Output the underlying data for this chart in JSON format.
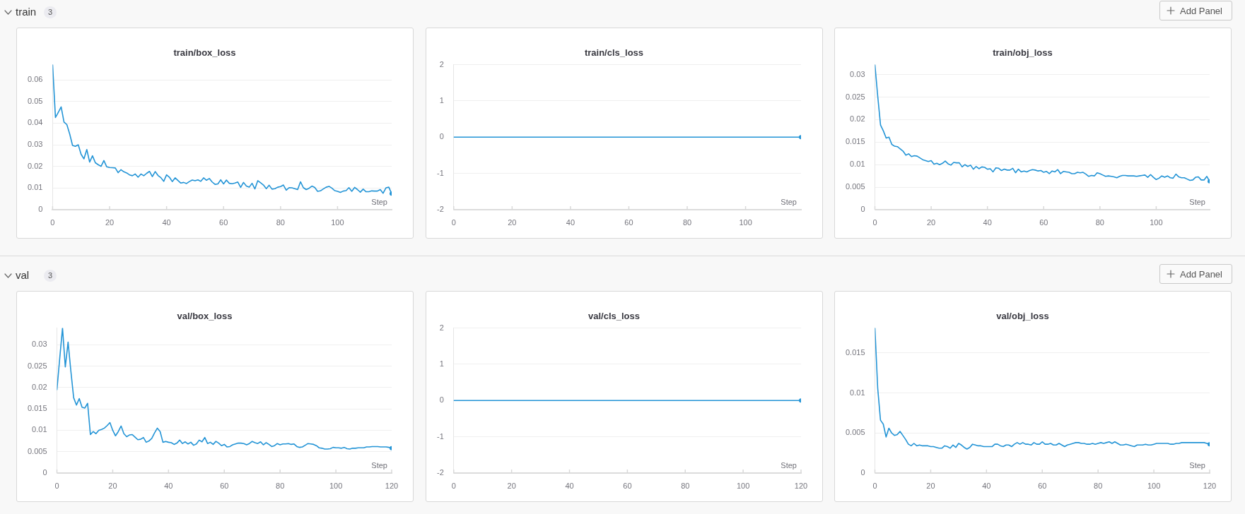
{
  "chart_data": [
    {
      "type": "line",
      "title": "train/box_loss",
      "xlabel": "Step",
      "annotations": [
        "train",
        "3",
        "Add Panel"
      ],
      "color": "#2394d6",
      "grid": "y",
      "xlim": [
        0,
        119
      ],
      "xticks": [
        0,
        20,
        40,
        60,
        80,
        100
      ],
      "ylim": [
        0,
        0.067
      ],
      "yticks": [
        0,
        0.01,
        0.02,
        0.03,
        0.04,
        0.05,
        0.06
      ],
      "x": [
        0,
        1,
        2,
        3,
        4,
        5,
        6,
        7,
        8,
        9,
        10,
        11,
        12,
        13,
        14,
        15,
        16,
        17,
        18,
        19,
        20,
        21,
        22,
        23,
        24,
        25,
        26,
        27,
        28,
        29,
        30,
        31,
        32,
        33,
        34,
        35,
        36,
        37,
        38,
        39,
        40,
        41,
        42,
        43,
        44,
        45,
        46,
        47,
        48,
        49,
        50,
        51,
        52,
        53,
        54,
        55,
        56,
        57,
        58,
        59,
        60,
        61,
        62,
        63,
        64,
        65,
        66,
        67,
        68,
        69,
        70,
        71,
        72,
        73,
        74,
        75,
        76,
        77,
        78,
        79,
        80,
        81,
        82,
        83,
        84,
        85,
        86,
        87,
        88,
        89,
        90,
        91,
        92,
        93,
        94,
        95,
        96,
        97,
        98,
        99,
        100,
        101,
        102,
        103,
        104,
        105,
        106,
        107,
        108,
        109,
        110,
        111,
        112,
        113,
        114,
        115,
        116,
        117,
        118,
        119
      ],
      "values": [
        0.067,
        0.0426,
        0.045,
        0.0475,
        0.0405,
        0.0393,
        0.035,
        0.0297,
        0.0293,
        0.03,
        0.0256,
        0.0235,
        0.0278,
        0.022,
        0.0249,
        0.0217,
        0.0208,
        0.02,
        0.0227,
        0.0198,
        0.0195,
        0.0194,
        0.0193,
        0.0171,
        0.0185,
        0.0175,
        0.017,
        0.0161,
        0.0157,
        0.0165,
        0.015,
        0.0165,
        0.0157,
        0.0168,
        0.0177,
        0.0153,
        0.0176,
        0.0158,
        0.0148,
        0.0131,
        0.0161,
        0.015,
        0.013,
        0.0147,
        0.0135,
        0.0123,
        0.0126,
        0.0121,
        0.013,
        0.0137,
        0.0134,
        0.0138,
        0.0131,
        0.0147,
        0.0136,
        0.0144,
        0.0128,
        0.0117,
        0.0119,
        0.0138,
        0.0119,
        0.0137,
        0.0122,
        0.012,
        0.0123,
        0.0128,
        0.0103,
        0.0126,
        0.0109,
        0.0104,
        0.0122,
        0.0096,
        0.0134,
        0.0124,
        0.0114,
        0.0097,
        0.0113,
        0.0095,
        0.0097,
        0.0104,
        0.0107,
        0.0114,
        0.009,
        0.0102,
        0.0101,
        0.0097,
        0.0093,
        0.0129,
        0.0102,
        0.0093,
        0.0099,
        0.0109,
        0.0103,
        0.0085,
        0.0087,
        0.0096,
        0.0104,
        0.0108,
        0.01,
        0.0088,
        0.0085,
        0.008,
        0.0086,
        0.0088,
        0.0102,
        0.0085,
        0.0103,
        0.0093,
        0.0081,
        0.0095,
        0.0083,
        0.0083,
        0.0087,
        0.0086,
        0.0086,
        0.0093,
        0.0076,
        0.0101,
        0.0104,
        0.0074
      ]
    },
    {
      "type": "line",
      "title": "train/cls_loss",
      "xlabel": "Step",
      "color": "#2394d6",
      "grid": "y",
      "xlim": [
        0,
        119
      ],
      "xticks": [
        0,
        20,
        40,
        60,
        80,
        100
      ],
      "ylim": [
        -2,
        2
      ],
      "yticks": [
        -2,
        -1,
        0,
        1,
        2
      ],
      "x": [
        0,
        119
      ],
      "values": [
        0,
        0
      ]
    },
    {
      "type": "line",
      "title": "train/obj_loss",
      "xlabel": "Step",
      "color": "#2394d6",
      "grid": "y",
      "xlim": [
        0,
        119
      ],
      "xticks": [
        0,
        20,
        40,
        60,
        80,
        100
      ],
      "ylim": [
        0,
        0.0322
      ],
      "yticks": [
        0,
        0.005,
        0.01,
        0.015,
        0.02,
        0.025,
        0.03
      ],
      "x": [
        0,
        1,
        2,
        3,
        4,
        5,
        6,
        7,
        8,
        9,
        10,
        11,
        12,
        13,
        14,
        15,
        16,
        17,
        18,
        19,
        20,
        21,
        22,
        23,
        24,
        25,
        26,
        27,
        28,
        29,
        30,
        31,
        32,
        33,
        34,
        35,
        36,
        37,
        38,
        39,
        40,
        41,
        42,
        43,
        44,
        45,
        46,
        47,
        48,
        49,
        50,
        51,
        52,
        53,
        54,
        55,
        56,
        57,
        58,
        59,
        60,
        61,
        62,
        63,
        64,
        65,
        66,
        67,
        68,
        69,
        70,
        71,
        72,
        73,
        74,
        75,
        76,
        77,
        78,
        79,
        80,
        81,
        82,
        83,
        84,
        85,
        86,
        87,
        88,
        89,
        90,
        91,
        92,
        93,
        94,
        95,
        96,
        97,
        98,
        99,
        100,
        101,
        102,
        103,
        104,
        105,
        106,
        107,
        108,
        109,
        110,
        111,
        112,
        113,
        114,
        115,
        116,
        117,
        118,
        119
      ],
      "values": [
        0.0322,
        0.0252,
        0.0188,
        0.0175,
        0.0159,
        0.0161,
        0.0145,
        0.0141,
        0.014,
        0.0135,
        0.013,
        0.0121,
        0.0124,
        0.0118,
        0.012,
        0.0119,
        0.0115,
        0.0111,
        0.0109,
        0.0107,
        0.0109,
        0.0101,
        0.0103,
        0.01,
        0.0103,
        0.0108,
        0.0102,
        0.0099,
        0.0105,
        0.0104,
        0.0104,
        0.0095,
        0.01,
        0.0096,
        0.0099,
        0.009,
        0.0096,
        0.0091,
        0.0095,
        0.0094,
        0.009,
        0.0091,
        0.0084,
        0.0093,
        0.0092,
        0.0087,
        0.009,
        0.0088,
        0.0088,
        0.0092,
        0.0082,
        0.009,
        0.0084,
        0.0086,
        0.0084,
        0.0087,
        0.0089,
        0.0088,
        0.0086,
        0.0087,
        0.0083,
        0.0085,
        0.008,
        0.0086,
        0.0084,
        0.0089,
        0.008,
        0.0085,
        0.0084,
        0.0083,
        0.008,
        0.008,
        0.0083,
        0.0082,
        0.0083,
        0.0079,
        0.0074,
        0.0076,
        0.0075,
        0.0082,
        0.008,
        0.0077,
        0.0074,
        0.0075,
        0.0074,
        0.0073,
        0.0071,
        0.0074,
        0.0076,
        0.0076,
        0.0075,
        0.0075,
        0.0075,
        0.0074,
        0.0075,
        0.0076,
        0.0077,
        0.0072,
        0.0078,
        0.0072,
        0.0067,
        0.007,
        0.0075,
        0.0072,
        0.0075,
        0.0071,
        0.007,
        0.0079,
        0.0073,
        0.0071,
        0.0071,
        0.0068,
        0.0065,
        0.0066,
        0.0072,
        0.0073,
        0.0066,
        0.0066,
        0.0074,
        0.0063
      ]
    },
    {
      "type": "line",
      "title": "val/box_loss",
      "xlabel": "Step",
      "annotations": [
        "val",
        "3",
        "Add Panel"
      ],
      "color": "#2394d6",
      "grid": "y",
      "xlim": [
        0,
        120
      ],
      "xticks": [
        0,
        20,
        40,
        60,
        80,
        100,
        120
      ],
      "ylim": [
        0,
        0.0339
      ],
      "yticks": [
        0,
        0.005,
        0.01,
        0.015,
        0.02,
        0.025,
        0.03
      ],
      "x": [
        0,
        1,
        2,
        3,
        4,
        5,
        6,
        7,
        8,
        9,
        10,
        11,
        12,
        13,
        14,
        15,
        16,
        17,
        18,
        19,
        20,
        21,
        22,
        23,
        24,
        25,
        26,
        27,
        28,
        29,
        30,
        31,
        32,
        33,
        34,
        35,
        36,
        37,
        38,
        39,
        40,
        41,
        42,
        43,
        44,
        45,
        46,
        47,
        48,
        49,
        50,
        51,
        52,
        53,
        54,
        55,
        56,
        57,
        58,
        59,
        60,
        61,
        62,
        63,
        64,
        65,
        66,
        67,
        68,
        69,
        70,
        71,
        72,
        73,
        74,
        75,
        76,
        77,
        78,
        79,
        80,
        81,
        82,
        83,
        84,
        85,
        86,
        87,
        88,
        89,
        90,
        91,
        92,
        93,
        94,
        95,
        96,
        97,
        98,
        99,
        100,
        101,
        102,
        103,
        104,
        105,
        106,
        107,
        108,
        109,
        110,
        111,
        112,
        113,
        114,
        115,
        116,
        117,
        118,
        119,
        120
      ],
      "values": [
        0.0195,
        0.0268,
        0.0339,
        0.0248,
        0.0306,
        0.0238,
        0.0176,
        0.0159,
        0.0174,
        0.0154,
        0.0152,
        0.0163,
        0.009,
        0.0097,
        0.0092,
        0.01,
        0.0102,
        0.0105,
        0.0111,
        0.0118,
        0.01,
        0.0087,
        0.0097,
        0.011,
        0.0092,
        0.0085,
        0.0089,
        0.009,
        0.0084,
        0.0078,
        0.0079,
        0.0083,
        0.0072,
        0.0075,
        0.0081,
        0.0094,
        0.0105,
        0.0097,
        0.0072,
        0.0074,
        0.0072,
        0.0071,
        0.0067,
        0.007,
        0.0077,
        0.0069,
        0.0073,
        0.0068,
        0.0072,
        0.0065,
        0.0068,
        0.0077,
        0.0073,
        0.0083,
        0.0069,
        0.0072,
        0.0067,
        0.0074,
        0.007,
        0.0064,
        0.0067,
        0.0061,
        0.0062,
        0.0066,
        0.0068,
        0.007,
        0.007,
        0.0069,
        0.0066,
        0.0069,
        0.0074,
        0.0071,
        0.0069,
        0.0073,
        0.0066,
        0.0071,
        0.0067,
        0.0062,
        0.0064,
        0.0069,
        0.0066,
        0.0068,
        0.0068,
        0.0069,
        0.0067,
        0.0068,
        0.0062,
        0.006,
        0.0061,
        0.0065,
        0.0069,
        0.0068,
        0.0067,
        0.0064,
        0.0059,
        0.0058,
        0.0056,
        0.0056,
        0.0057,
        0.006,
        0.0059,
        0.0059,
        0.0058,
        0.006,
        0.0057,
        0.0056,
        0.0058,
        0.0058,
        0.0059,
        0.0059,
        0.0059,
        0.0061,
        0.0061,
        0.0062,
        0.0062,
        0.0062,
        0.0061,
        0.0061,
        0.0061,
        0.006,
        0.0058
      ]
    },
    {
      "type": "line",
      "title": "val/cls_loss",
      "xlabel": "Step",
      "color": "#2394d6",
      "grid": "y",
      "xlim": [
        0,
        120
      ],
      "xticks": [
        0,
        20,
        40,
        60,
        80,
        100,
        120
      ],
      "ylim": [
        -2,
        2
      ],
      "yticks": [
        -2,
        -1,
        0,
        1,
        2
      ],
      "x": [
        0,
        120
      ],
      "values": [
        0,
        0
      ]
    },
    {
      "type": "line",
      "title": "val/obj_loss",
      "xlabel": "Step",
      "color": "#2394d6",
      "grid": "y",
      "xlim": [
        0,
        120
      ],
      "xticks": [
        0,
        20,
        40,
        60,
        80,
        100,
        120
      ],
      "ylim": [
        0,
        0.0181
      ],
      "yticks": [
        0,
        0.005,
        0.01,
        0.015
      ],
      "x": [
        0,
        1,
        2,
        3,
        4,
        5,
        6,
        7,
        8,
        9,
        10,
        11,
        12,
        13,
        14,
        15,
        16,
        17,
        18,
        19,
        20,
        21,
        22,
        23,
        24,
        25,
        26,
        27,
        28,
        29,
        30,
        31,
        32,
        33,
        34,
        35,
        36,
        37,
        38,
        39,
        40,
        41,
        42,
        43,
        44,
        45,
        46,
        47,
        48,
        49,
        50,
        51,
        52,
        53,
        54,
        55,
        56,
        57,
        58,
        59,
        60,
        61,
        62,
        63,
        64,
        65,
        66,
        67,
        68,
        69,
        70,
        71,
        72,
        73,
        74,
        75,
        76,
        77,
        78,
        79,
        80,
        81,
        82,
        83,
        84,
        85,
        86,
        87,
        88,
        89,
        90,
        91,
        92,
        93,
        94,
        95,
        96,
        97,
        98,
        99,
        100,
        101,
        102,
        103,
        104,
        105,
        106,
        107,
        108,
        109,
        110,
        111,
        112,
        113,
        114,
        115,
        116,
        117,
        118,
        119,
        120
      ],
      "values": [
        0.0181,
        0.0106,
        0.0066,
        0.0061,
        0.0045,
        0.0056,
        0.005,
        0.0047,
        0.0048,
        0.0052,
        0.0047,
        0.0042,
        0.0036,
        0.0034,
        0.0037,
        0.0034,
        0.0035,
        0.0034,
        0.0034,
        0.0034,
        0.0033,
        0.0033,
        0.0032,
        0.0031,
        0.0031,
        0.0034,
        0.0033,
        0.0031,
        0.0035,
        0.0032,
        0.0037,
        0.0035,
        0.0032,
        0.003,
        0.0032,
        0.0036,
        0.0035,
        0.0034,
        0.0034,
        0.0033,
        0.0033,
        0.0033,
        0.0033,
        0.0036,
        0.0036,
        0.0034,
        0.0033,
        0.0035,
        0.0035,
        0.0033,
        0.0036,
        0.0038,
        0.0036,
        0.0038,
        0.0036,
        0.0036,
        0.0035,
        0.0038,
        0.0036,
        0.0036,
        0.0039,
        0.0036,
        0.0036,
        0.0037,
        0.0035,
        0.0035,
        0.0037,
        0.0035,
        0.0033,
        0.0035,
        0.0036,
        0.0037,
        0.0038,
        0.0038,
        0.0037,
        0.0037,
        0.0036,
        0.0036,
        0.0037,
        0.0036,
        0.0037,
        0.0038,
        0.0037,
        0.0038,
        0.0039,
        0.0037,
        0.0039,
        0.0037,
        0.0035,
        0.0035,
        0.0036,
        0.0035,
        0.0034,
        0.0033,
        0.0035,
        0.0035,
        0.0035,
        0.0036,
        0.0035,
        0.0035,
        0.0036,
        0.0037,
        0.0037,
        0.0037,
        0.0037,
        0.0037,
        0.0036,
        0.0036,
        0.0037,
        0.0037,
        0.0038,
        0.0038,
        0.0038,
        0.0038,
        0.0038,
        0.0038,
        0.0038,
        0.0038,
        0.0038,
        0.0037,
        0.0036
      ]
    }
  ]
}
